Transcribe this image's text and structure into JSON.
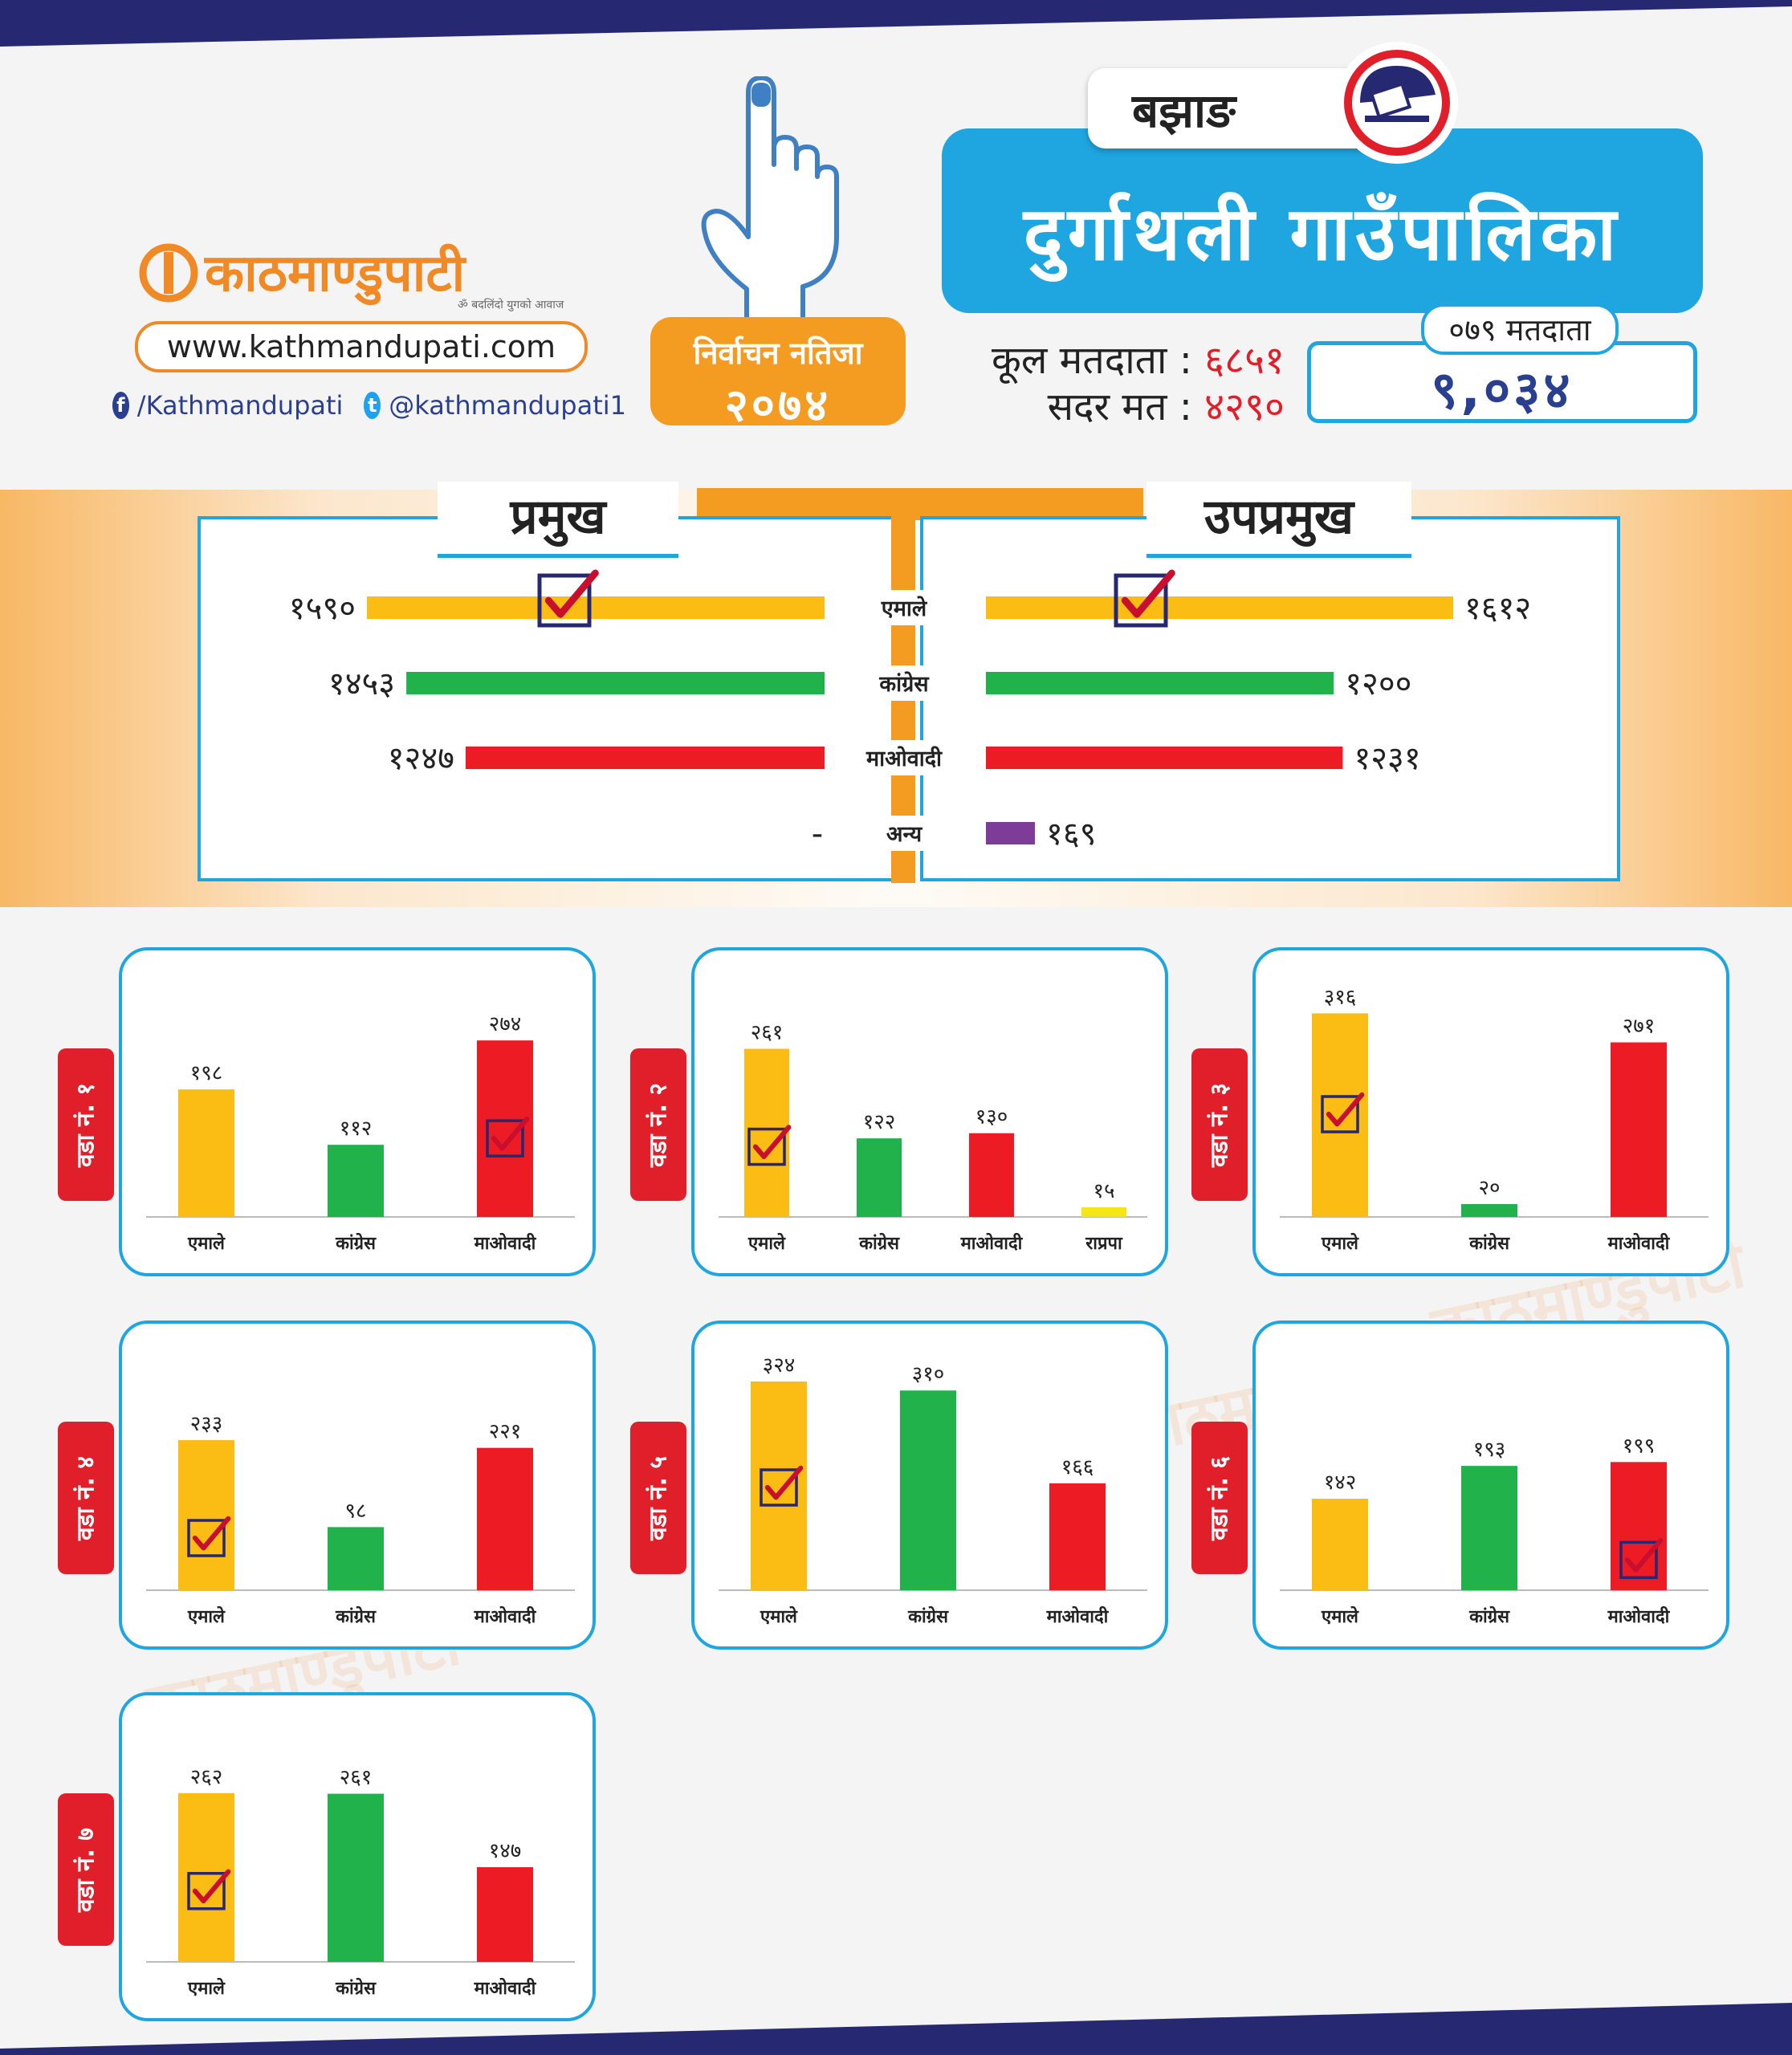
{
  "brand": {
    "name": "काठमाण्डुपाटी",
    "tagline": "ॐ बदलिंदो युगको आवाज",
    "website": "www.kathmandupati.com",
    "facebook": "/Kathmandupati",
    "twitter": "@kathmandupati1"
  },
  "badge": {
    "label": "निर्वाचन नतिजा",
    "year": "२०७४"
  },
  "header": {
    "district": "बझाङ",
    "title": "दुर्गाथली गाउँपालिका",
    "total_voters_label": "कूल मतदाता :",
    "total_voters": "६८५१",
    "valid_votes_label": "सदर मत :",
    "valid_votes": "४२९०",
    "voters_079_label": "०७९ मतदाता",
    "voters_079": "९,०३४"
  },
  "colors": {
    "uml": "#fbbd14",
    "congress": "#21b24b",
    "maoist": "#ed1c24",
    "other": "#7d3c98",
    "rpp": "#f5e617",
    "accent_blue": "#1fa6e0",
    "accent_orange": "#f49b22",
    "navy": "#262872"
  },
  "chart_data": [
    {
      "type": "bar",
      "title": "प्रमुख",
      "categories": [
        "एमाले",
        "कांग्रेस",
        "माओवादी",
        "अन्य"
      ],
      "values": [
        1590,
        1453,
        1247,
        null
      ],
      "value_labels": [
        "१५९०",
        "१४५३",
        "१२४७",
        "-"
      ],
      "winner": "एमाले"
    },
    {
      "type": "bar",
      "title": "उपप्रमुख",
      "categories": [
        "एमाले",
        "कांग्रेस",
        "माओवादी",
        "अन्य"
      ],
      "values": [
        1612,
        1200,
        1231,
        169
      ],
      "value_labels": [
        "१६१२",
        "१२००",
        "१२३१",
        "१६९"
      ],
      "winner": "एमाले"
    },
    {
      "type": "bar",
      "title": "वडा नं. १",
      "categories": [
        "एमाले",
        "कांग्रेस",
        "माओवादी"
      ],
      "values": [
        198,
        112,
        274
      ],
      "value_labels": [
        "१९८",
        "११२",
        "२७४"
      ],
      "winner_index": 2
    },
    {
      "type": "bar",
      "title": "वडा नं. २",
      "categories": [
        "एमाले",
        "कांग्रेस",
        "माओवादी",
        "राप्रपा"
      ],
      "values": [
        261,
        122,
        130,
        15
      ],
      "value_labels": [
        "२६१",
        "१२२",
        "१३०",
        "१५"
      ],
      "winner_index": 0
    },
    {
      "type": "bar",
      "title": "वडा नं. ३",
      "categories": [
        "एमाले",
        "कांग्रेस",
        "माओवादी"
      ],
      "values": [
        316,
        20,
        271
      ],
      "value_labels": [
        "३१६",
        "२०",
        "२७१"
      ],
      "winner_index": 0
    },
    {
      "type": "bar",
      "title": "वडा नं. ४",
      "categories": [
        "एमाले",
        "कांग्रेस",
        "माओवादी"
      ],
      "values": [
        233,
        98,
        221
      ],
      "value_labels": [
        "२३३",
        "९८",
        "२२१"
      ],
      "winner_index": 0
    },
    {
      "type": "bar",
      "title": "वडा नं. ५",
      "categories": [
        "एमाले",
        "कांग्रेस",
        "माओवादी"
      ],
      "values": [
        324,
        310,
        166
      ],
      "value_labels": [
        "३२४",
        "३१०",
        "१६६"
      ],
      "winner_index": 0
    },
    {
      "type": "bar",
      "title": "वडा नं. ६",
      "categories": [
        "एमाले",
        "कांग्रेस",
        "माओवादी"
      ],
      "values": [
        142,
        193,
        199
      ],
      "value_labels": [
        "१४२",
        "१९३",
        "१९९"
      ],
      "winner_index": 2
    },
    {
      "type": "bar",
      "title": "वडा नं. ७",
      "categories": [
        "एमाले",
        "कांग्रेस",
        "माओवादी"
      ],
      "values": [
        262,
        261,
        147
      ],
      "value_labels": [
        "२६२",
        "२६१",
        "१४७"
      ],
      "winner_index": 0
    }
  ]
}
